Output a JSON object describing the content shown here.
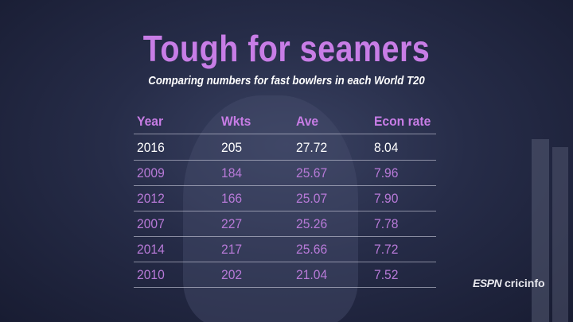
{
  "header": {
    "title": "Tough for seamers",
    "subtitle": "Comparing numbers for fast bowlers in each World T20"
  },
  "table": {
    "columns": [
      "Year",
      "Wkts",
      "Ave",
      "Econ rate"
    ],
    "rows": [
      [
        "2016",
        "205",
        "27.72",
        "8.04"
      ],
      [
        "2009",
        "184",
        "25.67",
        "7.96"
      ],
      [
        "2012",
        "166",
        "25.07",
        "7.90"
      ],
      [
        "2007",
        "227",
        "25.26",
        "7.78"
      ],
      [
        "2014",
        "217",
        "25.66",
        "7.72"
      ],
      [
        "2010",
        "202",
        "21.04",
        "7.52"
      ]
    ]
  },
  "logo": {
    "brand": "ESPN",
    "site": "cricinfo"
  }
}
